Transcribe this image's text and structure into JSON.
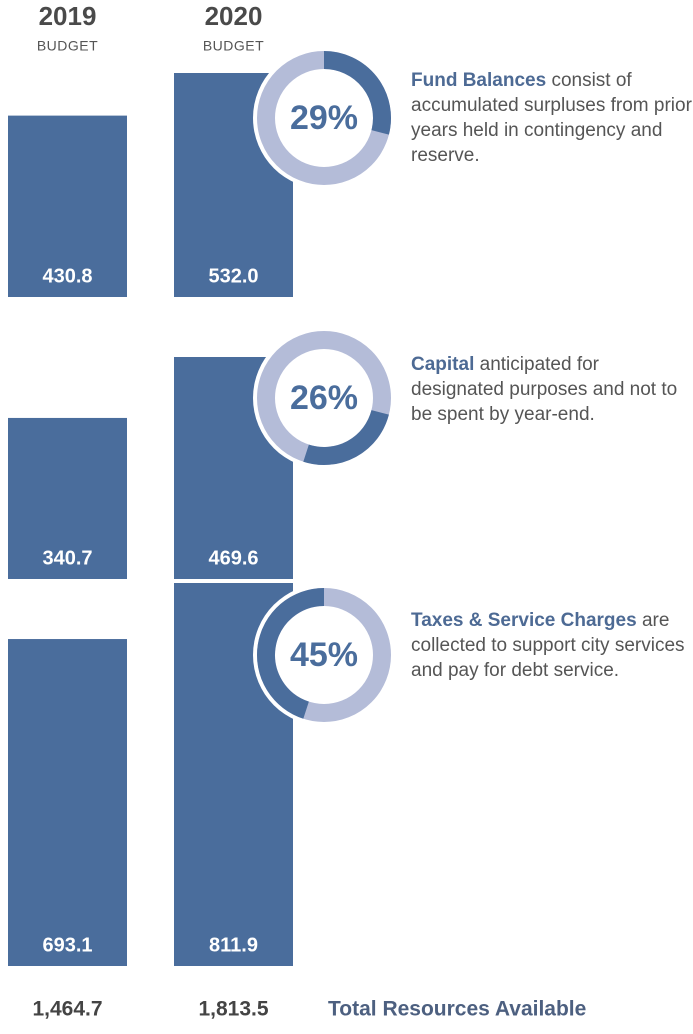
{
  "chart_data": {
    "type": "stacked-bar",
    "categories": [
      "2019",
      "2020"
    ],
    "category_sublabels": [
      "BUDGET",
      "BUDGET"
    ],
    "series": [
      {
        "name": "Fund Balances",
        "description": "consist of accumulated surpluses from prior years held in contingency and reserve.",
        "color": "#4a6d9c",
        "values": [
          430.8,
          532.0
        ],
        "value_labels": [
          "430.8",
          "532.0"
        ],
        "share": 29,
        "share_label": "29%"
      },
      {
        "name": "Capital",
        "description": "anticipated for designated purposes and not to be spent by year-end.",
        "color": "#4a6d9c",
        "values": [
          340.7,
          469.6
        ],
        "value_labels": [
          "340.7",
          "469.6"
        ],
        "share": 26,
        "share_label": "26%"
      },
      {
        "name": "Taxes & Service Charges",
        "description": "are collected to support city services and pay for debt service.",
        "color": "#4a6d9c",
        "values": [
          693.1,
          811.9
        ],
        "value_labels": [
          "693.1",
          "811.9"
        ],
        "share": 45,
        "share_label": "45%"
      }
    ],
    "ring_color": "#b4bcd8",
    "totals": [
      {
        "value": 1464.7,
        "label": "1,464.7"
      },
      {
        "value": 1813.5,
        "label": "1,813.5"
      }
    ],
    "total_label": "Total Resources Available"
  }
}
